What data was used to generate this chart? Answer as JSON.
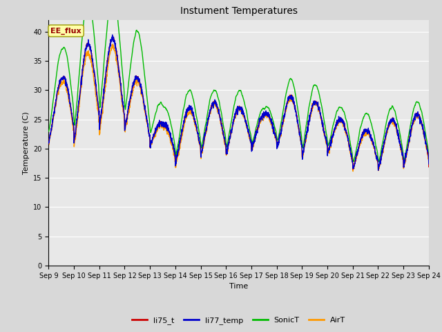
{
  "title": "Instument Temperatures",
  "xlabel": "Time",
  "ylabel": "Temperature (C)",
  "ylim": [
    0,
    42
  ],
  "yticks": [
    0,
    5,
    10,
    15,
    20,
    25,
    30,
    35,
    40
  ],
  "x_start": 9,
  "x_end": 24,
  "x_ticks": [
    9,
    10,
    11,
    12,
    13,
    14,
    15,
    16,
    17,
    18,
    19,
    20,
    21,
    22,
    23,
    24
  ],
  "x_tick_labels": [
    "Sep 9",
    "Sep 10",
    "Sep 11",
    "Sep 12",
    "Sep 13",
    "Sep 14",
    "Sep 15",
    "Sep 16",
    "Sep 17",
    "Sep 18",
    "Sep 19",
    "Sep 20",
    "Sep 21",
    "Sep 22",
    "Sep 23",
    "Sep 24"
  ],
  "colors": {
    "li75_t": "#cc0000",
    "li77_temp": "#0000cc",
    "SonicT": "#00bb00",
    "AirT": "#ff9900"
  },
  "annotation_text": "EE_flux",
  "annotation_color": "#990000",
  "annotation_bg": "#ffffaa",
  "annotation_edge": "#999900",
  "fig_bg": "#d8d8d8",
  "plot_bg": "#e8e8e8",
  "grid_color": "#ffffff",
  "linewidth": 1.0,
  "title_fontsize": 10,
  "tick_fontsize": 7,
  "label_fontsize": 8,
  "legend_fontsize": 8
}
